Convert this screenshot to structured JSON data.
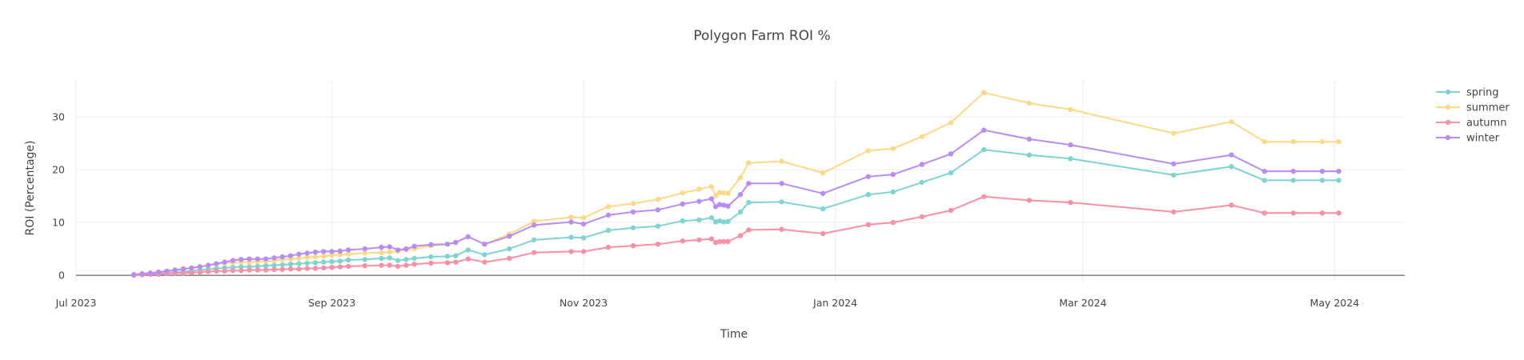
{
  "chart_data": {
    "type": "line",
    "title": "Polygon Farm ROI %",
    "xlabel": "Time",
    "ylabel": "ROI (Percentage)",
    "x_range": [
      "2023-07-01",
      "2024-05-18"
    ],
    "ylim": [
      -1.5,
      37
    ],
    "x_ticks": [
      {
        "label": "Jul 2023",
        "date": "2023-07-01"
      },
      {
        "label": "Sep 2023",
        "date": "2023-09-01"
      },
      {
        "label": "Nov 2023",
        "date": "2023-11-01"
      },
      {
        "label": "Jan 2024",
        "date": "2024-01-01"
      },
      {
        "label": "Mar 2024",
        "date": "2024-03-01"
      },
      {
        "label": "May 2024",
        "date": "2024-05-01"
      }
    ],
    "y_ticks": [
      0,
      10,
      20,
      30
    ],
    "grid": true,
    "legend_position": "top-right",
    "x": [
      "2023-07-15",
      "2023-07-17",
      "2023-07-19",
      "2023-07-21",
      "2023-07-23",
      "2023-07-25",
      "2023-07-27",
      "2023-07-29",
      "2023-07-31",
      "2023-08-02",
      "2023-08-04",
      "2023-08-06",
      "2023-08-08",
      "2023-08-10",
      "2023-08-12",
      "2023-08-14",
      "2023-08-16",
      "2023-08-18",
      "2023-08-20",
      "2023-08-22",
      "2023-08-24",
      "2023-08-26",
      "2023-08-28",
      "2023-08-30",
      "2023-09-01",
      "2023-09-03",
      "2023-09-05",
      "2023-09-09",
      "2023-09-13",
      "2023-09-15",
      "2023-09-17",
      "2023-09-19",
      "2023-09-21",
      "2023-09-25",
      "2023-09-29",
      "2023-10-01",
      "2023-10-04",
      "2023-10-08",
      "2023-10-14",
      "2023-10-20",
      "2023-10-29",
      "2023-11-01",
      "2023-11-07",
      "2023-11-13",
      "2023-11-19",
      "2023-11-25",
      "2023-11-29",
      "2023-12-02",
      "2023-12-03",
      "2023-12-04",
      "2023-12-05",
      "2023-12-06",
      "2023-12-09",
      "2023-12-11",
      "2023-12-19",
      "2023-12-29",
      "2024-01-09",
      "2024-01-15",
      "2024-01-22",
      "2024-01-29",
      "2024-02-06",
      "2024-02-17",
      "2024-02-27",
      "2024-03-23",
      "2024-04-06",
      "2024-04-14",
      "2024-04-21",
      "2024-04-28",
      "2024-05-02"
    ],
    "series": [
      {
        "name": "spring",
        "color": "#7fd3d3",
        "values": [
          0.1,
          0.2,
          0.3,
          0.4,
          0.5,
          0.6,
          0.7,
          0.8,
          1.0,
          1.1,
          1.3,
          1.4,
          1.5,
          1.6,
          1.6,
          1.7,
          1.8,
          1.9,
          2.0,
          2.1,
          2.2,
          2.3,
          2.4,
          2.5,
          2.6,
          2.7,
          2.9,
          3.0,
          3.2,
          3.3,
          2.8,
          3.0,
          3.2,
          3.5,
          3.6,
          3.7,
          4.8,
          3.9,
          5.0,
          6.7,
          7.2,
          7.1,
          8.5,
          9.0,
          9.3,
          10.3,
          10.5,
          10.9,
          10.1,
          10.3,
          10.1,
          10.2,
          12.0,
          13.8,
          13.9,
          12.6,
          15.3,
          15.8,
          17.6,
          19.4,
          23.8,
          22.8,
          22.1,
          19.0,
          20.6,
          18.0,
          18.0,
          18.0,
          18.0
        ]
      },
      {
        "name": "summer",
        "color": "#fdd985",
        "values": [
          0.2,
          0.3,
          0.5,
          0.6,
          0.8,
          1.0,
          1.2,
          1.4,
          1.6,
          1.9,
          2.1,
          2.3,
          2.4,
          2.5,
          2.5,
          2.6,
          2.7,
          2.8,
          3.0,
          3.1,
          3.2,
          3.4,
          3.5,
          3.6,
          3.8,
          3.9,
          4.0,
          4.2,
          4.3,
          4.4,
          4.6,
          4.8,
          5.0,
          5.6,
          5.9,
          6.3,
          7.3,
          5.9,
          7.8,
          10.2,
          11.0,
          10.9,
          13.0,
          13.6,
          14.4,
          15.6,
          16.3,
          16.8,
          15.1,
          15.7,
          15.6,
          15.5,
          18.5,
          21.3,
          21.6,
          19.4,
          23.6,
          24.0,
          26.3,
          28.9,
          34.6,
          32.6,
          31.4,
          26.9,
          29.1,
          25.3,
          25.3,
          25.3,
          25.3
        ]
      },
      {
        "name": "autumn",
        "color": "#fb8fa6",
        "values": [
          0.0,
          0.1,
          0.2,
          0.2,
          0.3,
          0.4,
          0.4,
          0.5,
          0.6,
          0.7,
          0.8,
          0.8,
          0.9,
          0.9,
          1.0,
          1.0,
          1.0,
          1.1,
          1.1,
          1.2,
          1.2,
          1.3,
          1.3,
          1.4,
          1.5,
          1.6,
          1.7,
          1.8,
          1.9,
          1.9,
          1.7,
          1.9,
          2.1,
          2.3,
          2.4,
          2.5,
          3.1,
          2.5,
          3.2,
          4.3,
          4.5,
          4.5,
          5.3,
          5.6,
          5.9,
          6.5,
          6.7,
          6.9,
          6.2,
          6.4,
          6.4,
          6.4,
          7.5,
          8.6,
          8.7,
          7.9,
          9.6,
          10.0,
          11.1,
          12.3,
          14.9,
          14.2,
          13.8,
          12.0,
          13.3,
          11.8,
          11.8,
          11.8,
          11.8
        ]
      },
      {
        "name": "winter",
        "color": "#b98cf5",
        "values": [
          0.1,
          0.3,
          0.4,
          0.6,
          0.8,
          1.0,
          1.2,
          1.4,
          1.6,
          1.9,
          2.2,
          2.5,
          2.8,
          3.0,
          3.1,
          3.1,
          3.1,
          3.3,
          3.5,
          3.7,
          4.0,
          4.2,
          4.4,
          4.5,
          4.5,
          4.6,
          4.8,
          5.0,
          5.3,
          5.4,
          4.8,
          5.0,
          5.5,
          5.8,
          5.9,
          6.2,
          7.3,
          5.9,
          7.4,
          9.5,
          10.1,
          9.7,
          11.4,
          12.0,
          12.4,
          13.5,
          14.0,
          14.5,
          13.0,
          13.4,
          13.3,
          13.1,
          15.3,
          17.4,
          17.4,
          15.5,
          18.7,
          19.1,
          21.0,
          23.0,
          27.5,
          25.8,
          24.7,
          21.1,
          22.8,
          19.7,
          19.7,
          19.7,
          19.7
        ]
      }
    ]
  }
}
